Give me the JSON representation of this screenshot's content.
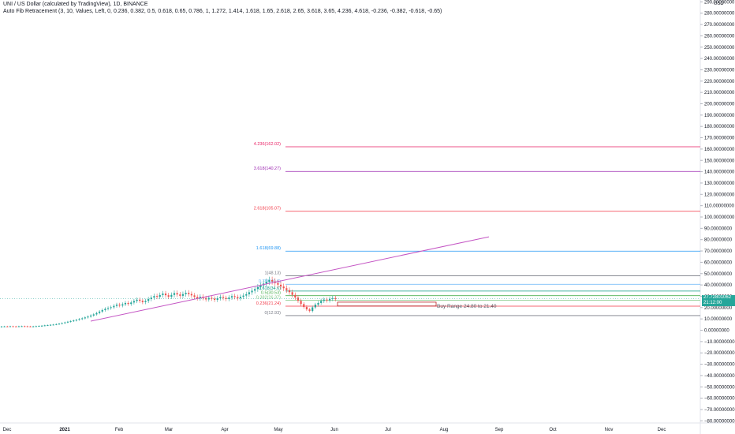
{
  "header": {
    "title": "UNI / US Dollar (calculated by TradingView), 1D, BINANCE",
    "indicator": "Auto Fib Retracement (3, 10, Values, Left, 0, 0.236, 0.382, 0.5, 0.618, 0.65, 0.786, 1, 1.272, 1.414, 1.618, 1.65, 2.618, 2.65, 3.618, 3.65, 4.236, 4.618, -0.236, -0.382, -0.618, -0.65)"
  },
  "price_axis": {
    "currency": "USD",
    "last_price": "27.72801062",
    "last_price_sub": "21:12:00"
  },
  "colors": {
    "up": "#26a69a",
    "down": "#ef5350",
    "trendline": "#c455c4",
    "grid": "#f0f3fa",
    "axis_text": "#131722"
  },
  "chart_data": {
    "type": "candlestick",
    "y_ticks": [
      "290.00000000",
      "280.00000000",
      "270.00000000",
      "260.00000000",
      "250.00000000",
      "240.00000000",
      "230.00000000",
      "220.00000000",
      "210.00000000",
      "200.00000000",
      "190.00000000",
      "180.00000000",
      "170.00000000",
      "160.00000000",
      "150.00000000",
      "140.00000000",
      "130.00000000",
      "120.00000000",
      "110.00000000",
      "100.00000000",
      "90.00000000",
      "80.00000000",
      "70.00000000",
      "60.00000000",
      "50.00000000",
      "40.00000000",
      "30.00000000",
      "20.00000000",
      "10.00000000",
      "0.00000000",
      "−10.00000000",
      "−20.00000000",
      "−30.00000000",
      "−40.00000000",
      "−50.00000000",
      "−60.00000000",
      "−70.00000000",
      "−80.00000000"
    ],
    "x_ticks": [
      "Dec",
      "2021",
      "Feb",
      "Mar",
      "Apr",
      "May",
      "Jun",
      "Jul",
      "Aug",
      "Sep",
      "Oct",
      "Nov",
      "Dec"
    ],
    "fib_levels": [
      {
        "label": "4.236(162.02)",
        "value": 162.02,
        "color": "#e91e63"
      },
      {
        "label": "3.618(140.27)",
        "value": 140.27,
        "color": "#9c27b0"
      },
      {
        "label": "2.618(105.07)",
        "value": 105.07,
        "color": "#f23645"
      },
      {
        "label": "1.618(69.88)",
        "value": 69.88,
        "color": "#2196f3"
      },
      {
        "label": "1(48.13)",
        "value": 48.13,
        "color": "#787b86"
      },
      {
        "label": "0.786(40.6)",
        "value": 40.6,
        "color": "#64b5f6"
      },
      {
        "label": "0.618(34.6)",
        "value": 34.6,
        "color": "#089981"
      },
      {
        "label": "0.5(30.53)",
        "value": 30.53,
        "color": "#4caf50"
      },
      {
        "label": "0.382(26.37)",
        "value": 26.37,
        "color": "#81c784"
      },
      {
        "label": "0.236(21.24)",
        "value": 21.24,
        "color": "#f23645"
      },
      {
        "label": "0(12.93)",
        "value": 12.93,
        "color": "#787b86"
      }
    ],
    "annotation": "Buy Range 24.80 to 21.40",
    "buy_range": [
      21.4,
      24.8
    ],
    "series": [
      {
        "name": "UNI/USD",
        "x_start": "2020-12-01",
        "close": [
          3.3,
          3.4,
          3.3,
          3.5,
          3.4,
          3.3,
          3.5,
          3.6,
          3.5,
          3.4,
          3.3,
          3.4,
          3.6,
          3.8,
          4.0,
          4.3,
          4.5,
          4.8,
          5.0,
          5.4,
          5.8,
          6.3,
          6.9,
          7.5,
          8.1,
          8.6,
          9.2,
          9.9,
          10.5,
          11.3,
          12.1,
          13.0,
          14.0,
          15.2,
          16.5,
          17.8,
          18.9,
          19.6,
          20.3,
          21.5,
          22.6,
          21.8,
          22.9,
          24.1,
          23.2,
          24.5,
          25.8,
          27.0,
          26.0,
          24.8,
          25.9,
          27.5,
          28.8,
          30.2,
          29.5,
          31.1,
          32.4,
          30.9,
          29.6,
          31.2,
          32.8,
          31.6,
          30.4,
          31.9,
          33.1,
          32.0,
          30.8,
          29.4,
          28.1,
          29.6,
          28.4,
          27.2,
          28.6,
          27.9,
          26.8,
          28.2,
          29.4,
          28.5,
          27.6,
          28.9,
          30.1,
          29.3,
          28.2,
          29.5,
          30.6,
          31.8,
          33.5,
          34.9,
          36.4,
          38.1,
          39.6,
          41.2,
          42.8,
          44.3,
          43.1,
          41.7,
          40.2,
          38.6,
          37.1,
          35.4,
          33.6,
          31.2,
          28.9,
          26.0,
          23.1,
          20.5,
          18.4,
          17.0,
          20.2,
          22.6,
          24.1,
          25.9,
          27.1,
          26.3,
          27.7,
          28.4,
          27.5
        ]
      }
    ]
  }
}
